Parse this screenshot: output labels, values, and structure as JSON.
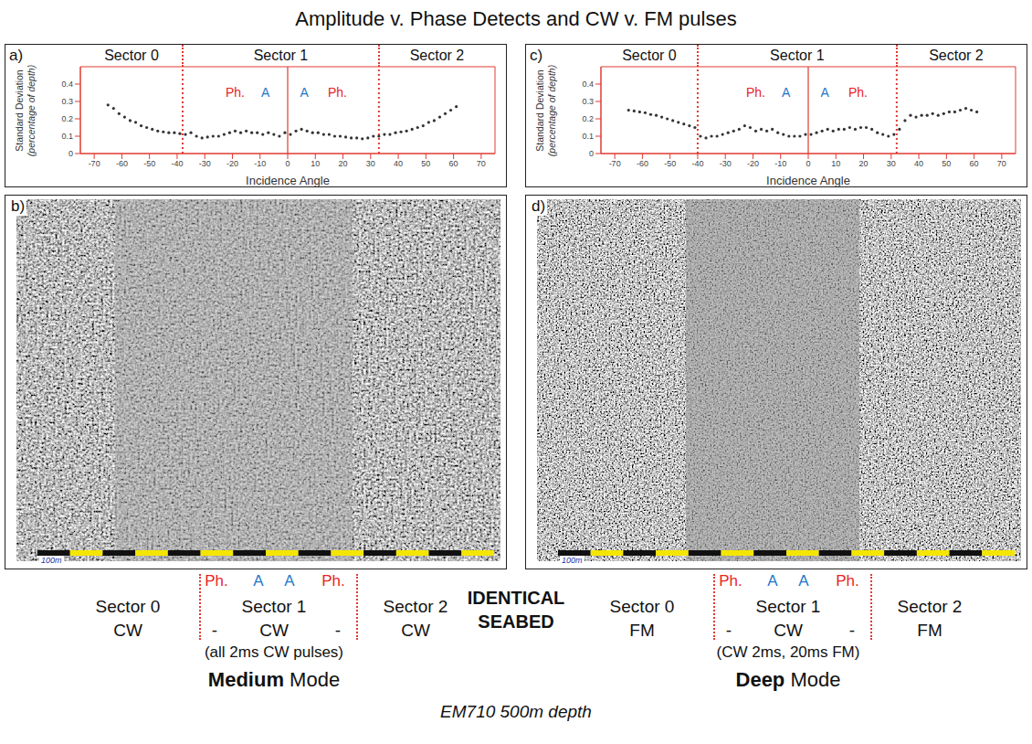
{
  "title": "Amplitude v. Phase Detects and CW v. FM pulses",
  "chart_data": [
    {
      "panel": "a)",
      "type": "scatter",
      "xlabel": "Incidence Angle",
      "ylabel": "Standard Deviation",
      "ylabel_note": "(percentage of depth)",
      "sectors": [
        "Sector 0",
        "Sector 1",
        "Sector 2"
      ],
      "sector_bounds": [
        -38,
        33
      ],
      "nadir": 0,
      "annotations": [
        {
          "text": "Ph.",
          "x": -19,
          "y": 0.35,
          "color": "#e8231d"
        },
        {
          "text": "A",
          "x": -8,
          "y": 0.35,
          "color": "#1f78c8"
        },
        {
          "text": "A",
          "x": 6,
          "y": 0.35,
          "color": "#1f78c8"
        },
        {
          "text": "Ph.",
          "x": 18,
          "y": 0.35,
          "color": "#e8231d"
        }
      ],
      "x": [
        -65,
        -63,
        -61,
        -59,
        -57,
        -55,
        -53,
        -51,
        -49,
        -47,
        -45,
        -43,
        -41,
        -39,
        -37,
        -35,
        -33,
        -31,
        -29,
        -27,
        -25,
        -23,
        -21,
        -19,
        -17,
        -15,
        -13,
        -11,
        -9,
        -7,
        -5,
        -3,
        -1,
        1,
        3,
        5,
        7,
        9,
        11,
        13,
        15,
        17,
        19,
        21,
        23,
        25,
        27,
        29,
        31,
        33,
        35,
        37,
        39,
        41,
        43,
        45,
        47,
        49,
        51,
        53,
        55,
        57,
        59,
        61
      ],
      "values": [
        0.28,
        0.26,
        0.23,
        0.21,
        0.19,
        0.18,
        0.16,
        0.15,
        0.14,
        0.13,
        0.125,
        0.12,
        0.12,
        0.115,
        0.11,
        0.12,
        0.1,
        0.09,
        0.095,
        0.1,
        0.1,
        0.11,
        0.12,
        0.13,
        0.12,
        0.13,
        0.12,
        0.12,
        0.11,
        0.12,
        0.11,
        0.1,
        0.12,
        0.11,
        0.13,
        0.14,
        0.13,
        0.12,
        0.12,
        0.11,
        0.11,
        0.1,
        0.1,
        0.095,
        0.09,
        0.09,
        0.085,
        0.09,
        0.1,
        0.1,
        0.11,
        0.11,
        0.12,
        0.125,
        0.13,
        0.14,
        0.15,
        0.16,
        0.18,
        0.19,
        0.21,
        0.23,
        0.25,
        0.27
      ],
      "color": "#333333",
      "marker": "circle",
      "xlim": [
        -75,
        75
      ],
      "xticks": [
        -70,
        -60,
        -50,
        -40,
        -30,
        -20,
        -10,
        0,
        10,
        20,
        30,
        40,
        50,
        60,
        70
      ],
      "ylim": [
        0,
        0.5
      ],
      "yticks": [
        0,
        0.1,
        0.2,
        0.3,
        0.4
      ]
    },
    {
      "panel": "c)",
      "type": "scatter",
      "xlabel": "Incidence Angle",
      "ylabel": "Standard Deviation",
      "ylabel_note": "(percentage of depth)",
      "sectors": [
        "Sector 0",
        "Sector 1",
        "Sector 2"
      ],
      "sector_bounds": [
        -40,
        32
      ],
      "nadir": 0,
      "annotations": [
        {
          "text": "Ph.",
          "x": -19,
          "y": 0.35,
          "color": "#e8231d"
        },
        {
          "text": "A",
          "x": -8,
          "y": 0.35,
          "color": "#1f78c8"
        },
        {
          "text": "A",
          "x": 6,
          "y": 0.35,
          "color": "#1f78c8"
        },
        {
          "text": "Ph.",
          "x": 18,
          "y": 0.35,
          "color": "#e8231d"
        }
      ],
      "x": [
        -65,
        -63,
        -61,
        -59,
        -57,
        -55,
        -53,
        -51,
        -49,
        -47,
        -45,
        -43,
        -41,
        -39,
        -37,
        -35,
        -33,
        -31,
        -29,
        -27,
        -25,
        -23,
        -21,
        -19,
        -17,
        -15,
        -13,
        -11,
        -9,
        -7,
        -5,
        -3,
        -1,
        1,
        3,
        5,
        7,
        9,
        11,
        13,
        15,
        17,
        19,
        21,
        23,
        25,
        27,
        29,
        31,
        33,
        35,
        37,
        39,
        41,
        43,
        45,
        47,
        49,
        51,
        53,
        55,
        57,
        59,
        61
      ],
      "values": [
        0.25,
        0.245,
        0.24,
        0.235,
        0.225,
        0.22,
        0.21,
        0.2,
        0.19,
        0.18,
        0.17,
        0.16,
        0.15,
        0.1,
        0.09,
        0.1,
        0.1,
        0.11,
        0.12,
        0.13,
        0.14,
        0.16,
        0.15,
        0.13,
        0.14,
        0.13,
        0.14,
        0.12,
        0.11,
        0.1,
        0.1,
        0.1,
        0.11,
        0.11,
        0.12,
        0.13,
        0.14,
        0.13,
        0.14,
        0.14,
        0.15,
        0.14,
        0.15,
        0.15,
        0.14,
        0.12,
        0.11,
        0.1,
        0.11,
        0.14,
        0.19,
        0.22,
        0.21,
        0.22,
        0.22,
        0.23,
        0.22,
        0.23,
        0.24,
        0.24,
        0.25,
        0.26,
        0.25,
        0.24
      ],
      "color": "#333333",
      "marker": "circle",
      "xlim": [
        -75,
        75
      ],
      "xticks": [
        -70,
        -60,
        -50,
        -40,
        -30,
        -20,
        -10,
        0,
        10,
        20,
        30,
        40,
        50,
        60,
        70
      ],
      "ylim": [
        0,
        0.5
      ],
      "yticks": [
        0,
        0.1,
        0.2,
        0.3,
        0.4
      ]
    }
  ],
  "images": [
    {
      "panel": "b)",
      "scale_label": "100m"
    },
    {
      "panel": "d)",
      "scale_label": "100m"
    }
  ],
  "captions": [
    {
      "markers": [
        {
          "text": "Ph.",
          "color": "#e8231d"
        },
        {
          "text": "A",
          "color": "#1f78c8"
        },
        {
          "text": "A",
          "color": "#1f78c8"
        },
        {
          "text": "Ph.",
          "color": "#e8231d"
        }
      ],
      "sectors": [
        "Sector 0",
        "Sector 1",
        "Sector 2"
      ],
      "pulses": [
        "CW",
        "-",
        "CW",
        "-",
        "CW"
      ],
      "note": "(all 2ms CW pulses)",
      "mode": {
        "bold": "Medium",
        "text": "Mode"
      }
    },
    {
      "markers": [
        {
          "text": "Ph.",
          "color": "#e8231d"
        },
        {
          "text": "A",
          "color": "#1f78c8"
        },
        {
          "text": "A",
          "color": "#1f78c8"
        },
        {
          "text": "Ph.",
          "color": "#e8231d"
        }
      ],
      "sectors": [
        "Sector 0",
        "Sector 1",
        "Sector 2"
      ],
      "pulses": [
        "FM",
        "-",
        "CW",
        "-",
        "FM"
      ],
      "note": "(CW 2ms, 20ms FM)",
      "mode": {
        "bold": "Deep",
        "text": "Mode"
      }
    }
  ],
  "center_text": [
    "IDENTICAL",
    "SEABED"
  ],
  "footer": "EM710 500m depth"
}
